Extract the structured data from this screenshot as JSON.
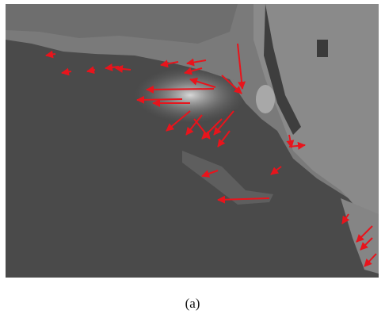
{
  "caption": "(a)"
}
